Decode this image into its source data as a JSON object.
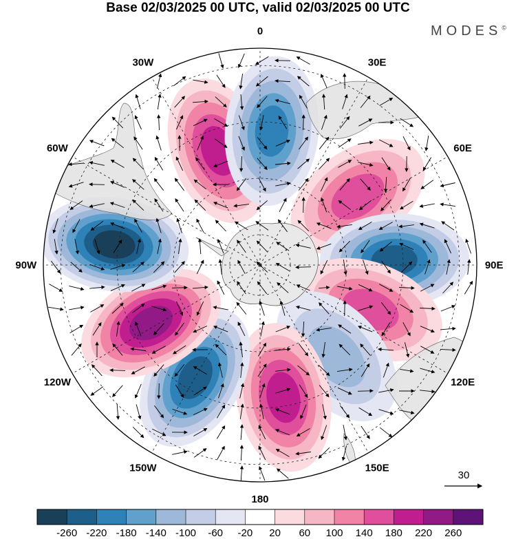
{
  "title": "Base 02/03/2025 00 UTC, valid 02/03/2025 00 UTC",
  "brand": "MODES",
  "brand_mark": "©",
  "longitude_labels": [
    {
      "text": "0",
      "lon": 0
    },
    {
      "text": "30E",
      "lon": 30
    },
    {
      "text": "60E",
      "lon": 60
    },
    {
      "text": "90E",
      "lon": 90
    },
    {
      "text": "120E",
      "lon": 120
    },
    {
      "text": "150E",
      "lon": 150
    },
    {
      "text": "180",
      "lon": 180
    },
    {
      "text": "150W",
      "lon": -150
    },
    {
      "text": "120W",
      "lon": -120
    },
    {
      "text": "90W",
      "lon": -90
    },
    {
      "text": "60W",
      "lon": -60
    },
    {
      "text": "30W",
      "lon": -30
    }
  ],
  "vector_reference": {
    "label": "30"
  },
  "colorbar": {
    "labels": [
      "-260",
      "-220",
      "-180",
      "-140",
      "-100",
      "-60",
      "-20",
      "20",
      "60",
      "100",
      "140",
      "180",
      "220",
      "260"
    ],
    "colors": [
      "#1a3f58",
      "#1d5f8a",
      "#2e82b8",
      "#5fa0cc",
      "#9db8d8",
      "#c4cde6",
      "#e4e6f3",
      "#ffffff",
      "#fbdbe0",
      "#f7b6c3",
      "#f083a6",
      "#df4f9b",
      "#c01d8f",
      "#921a86",
      "#5e1378"
    ]
  },
  "map_data": {
    "projection": "south-polar-stereographic",
    "field": "anomaly shaded with wind vectors",
    "anomaly_centers": [
      {
        "lon": -20,
        "lat_ring": 0.56,
        "value": 200
      },
      {
        "lon": 5,
        "lat_ring": 0.62,
        "value": -180
      },
      {
        "lon": 55,
        "lat_ring": 0.55,
        "value": 170
      },
      {
        "lon": 88,
        "lat_ring": 0.62,
        "value": -240
      },
      {
        "lon": 112,
        "lat_ring": 0.55,
        "value": 150
      },
      {
        "lon": 140,
        "lat_ring": 0.55,
        "value": -120
      },
      {
        "lon": 170,
        "lat_ring": 0.62,
        "value": 180
      },
      {
        "lon": -150,
        "lat_ring": 0.6,
        "value": -240
      },
      {
        "lon": -118,
        "lat_ring": 0.57,
        "value": 230
      },
      {
        "lon": -82,
        "lat_ring": 0.68,
        "value": -260
      }
    ]
  }
}
